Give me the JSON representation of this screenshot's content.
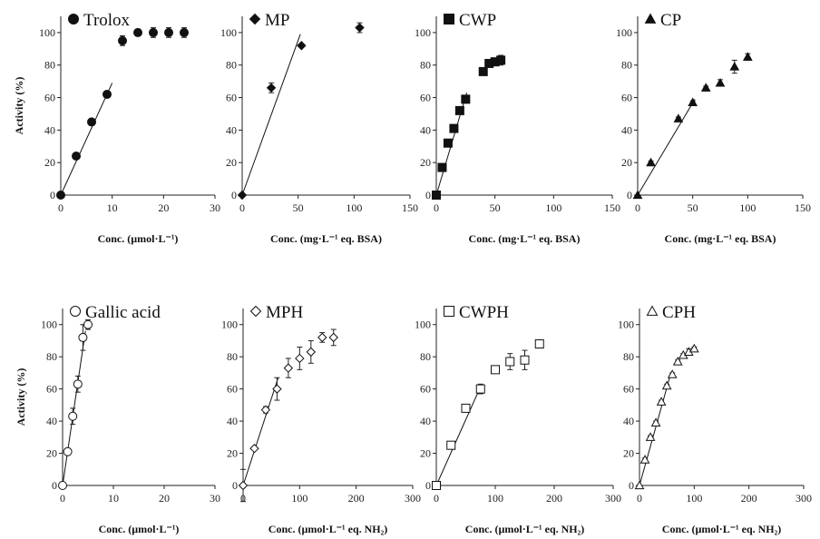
{
  "chart_data": [
    {
      "type": "scatter",
      "legend": "Trolox",
      "marker": "circle-filled",
      "xlim": [
        0,
        30
      ],
      "xticks": [
        0,
        10,
        20,
        30
      ],
      "ylim": [
        0,
        110
      ],
      "yticks": [
        0,
        20,
        40,
        60,
        80,
        100
      ],
      "xlabel": "Conc. (µmol·L⁻¹)",
      "ylabel": "Activity (%)",
      "points": [
        {
          "x": 0,
          "y": 0,
          "err": 0
        },
        {
          "x": 3,
          "y": 24,
          "err": 1
        },
        {
          "x": 6,
          "y": 45,
          "err": 2
        },
        {
          "x": 9,
          "y": 62,
          "err": 2
        },
        {
          "x": 12,
          "y": 95,
          "err": 3
        },
        {
          "x": 15,
          "y": 100,
          "err": 2
        },
        {
          "x": 18,
          "y": 100,
          "err": 3
        },
        {
          "x": 21,
          "y": 100,
          "err": 3
        },
        {
          "x": 24,
          "y": 100,
          "err": 3
        }
      ],
      "fit": [
        [
          0,
          0
        ],
        [
          10,
          69
        ]
      ]
    },
    {
      "type": "scatter",
      "legend": "MP",
      "marker": "diamond-filled",
      "xlim": [
        0,
        150
      ],
      "xticks": [
        0,
        50,
        100,
        150
      ],
      "ylim": [
        0,
        110
      ],
      "yticks": [
        0,
        20,
        40,
        60,
        80,
        100
      ],
      "xlabel": "Conc. (mg·L⁻¹ eq. BSA)",
      "ylabel": "",
      "points": [
        {
          "x": 0,
          "y": 0,
          "err": 0
        },
        {
          "x": 26,
          "y": 66,
          "err": 3
        },
        {
          "x": 53,
          "y": 92,
          "err": 1
        },
        {
          "x": 105,
          "y": 103,
          "err": 3
        }
      ],
      "fit": [
        [
          0,
          0
        ],
        [
          52,
          99
        ]
      ]
    },
    {
      "type": "scatter",
      "legend": "CWP",
      "marker": "square-filled",
      "xlim": [
        0,
        150
      ],
      "xticks": [
        0,
        50,
        100,
        150
      ],
      "ylim": [
        0,
        110
      ],
      "yticks": [
        0,
        20,
        40,
        60,
        80,
        100
      ],
      "xlabel": "Conc. (mg·L⁻¹ eq. BSA)",
      "ylabel": "",
      "points": [
        {
          "x": 0,
          "y": 0,
          "err": 0
        },
        {
          "x": 5,
          "y": 17,
          "err": 1
        },
        {
          "x": 10,
          "y": 32,
          "err": 1
        },
        {
          "x": 15,
          "y": 41,
          "err": 1
        },
        {
          "x": 20,
          "y": 52,
          "err": 1
        },
        {
          "x": 25,
          "y": 59,
          "err": 2
        },
        {
          "x": 40,
          "y": 76,
          "err": 2
        },
        {
          "x": 45,
          "y": 81,
          "err": 2
        },
        {
          "x": 50,
          "y": 82,
          "err": 2
        },
        {
          "x": 55,
          "y": 83,
          "err": 3
        }
      ],
      "fit": [
        [
          0,
          0
        ],
        [
          26,
          63
        ]
      ]
    },
    {
      "type": "scatter",
      "legend": "CP",
      "marker": "triangle-filled",
      "xlim": [
        0,
        150
      ],
      "xticks": [
        0,
        50,
        100,
        150
      ],
      "ylim": [
        0,
        110
      ],
      "yticks": [
        0,
        20,
        40,
        60,
        80,
        100
      ],
      "xlabel": "Conc. (mg·L⁻¹ eq. BSA)",
      "ylabel": "",
      "points": [
        {
          "x": 0,
          "y": 0,
          "err": 0
        },
        {
          "x": 12,
          "y": 20,
          "err": 1
        },
        {
          "x": 37,
          "y": 47,
          "err": 1
        },
        {
          "x": 50,
          "y": 57,
          "err": 1
        },
        {
          "x": 62,
          "y": 66,
          "err": 1
        },
        {
          "x": 75,
          "y": 69,
          "err": 2
        },
        {
          "x": 88,
          "y": 79,
          "err": 4
        },
        {
          "x": 100,
          "y": 85,
          "err": 2
        }
      ],
      "fit": [
        [
          0,
          0
        ],
        [
          52,
          59
        ]
      ]
    },
    {
      "type": "scatter",
      "legend": "Gallic acid",
      "marker": "circle-open",
      "xlim": [
        0,
        30
      ],
      "xticks": [
        0,
        10,
        20,
        30
      ],
      "ylim": [
        0,
        110
      ],
      "yticks": [
        0,
        20,
        40,
        60,
        80,
        100
      ],
      "xlabel": "Conc. (µmol·L⁻¹)",
      "ylabel": "Activity (%)",
      "points": [
        {
          "x": 0,
          "y": 0,
          "err": 0
        },
        {
          "x": 1,
          "y": 21,
          "err": 2
        },
        {
          "x": 2,
          "y": 43,
          "err": 5
        },
        {
          "x": 3,
          "y": 63,
          "err": 5
        },
        {
          "x": 4,
          "y": 92,
          "err": 8
        },
        {
          "x": 5,
          "y": 100,
          "err": 3
        }
      ],
      "fit": [
        [
          0,
          0
        ],
        [
          4.5,
          96
        ]
      ]
    },
    {
      "type": "scatter",
      "legend": "MPH",
      "marker": "diamond-open",
      "xlim": [
        0,
        300
      ],
      "xticks": [
        0,
        100,
        200,
        300
      ],
      "ylim": [
        0,
        110
      ],
      "yticks": [
        0,
        20,
        40,
        60,
        80,
        100
      ],
      "xlabel": "Conc. (µmol·L⁻¹ eq. NH₂)",
      "ylabel": "",
      "points": [
        {
          "x": 0,
          "y": 0,
          "err": 10
        },
        {
          "x": 20,
          "y": 23,
          "err": 1
        },
        {
          "x": 40,
          "y": 47,
          "err": 2
        },
        {
          "x": 60,
          "y": 60,
          "err": 7
        },
        {
          "x": 80,
          "y": 73,
          "err": 6
        },
        {
          "x": 100,
          "y": 79,
          "err": 7
        },
        {
          "x": 120,
          "y": 83,
          "err": 7
        },
        {
          "x": 140,
          "y": 92,
          "err": 3
        },
        {
          "x": 160,
          "y": 92,
          "err": 5
        }
      ],
      "fit": [
        [
          0,
          0
        ],
        [
          62,
          67
        ]
      ]
    },
    {
      "type": "scatter",
      "legend": "CWPH",
      "marker": "square-open",
      "xlim": [
        0,
        300
      ],
      "xticks": [
        0,
        100,
        200,
        300
      ],
      "ylim": [
        0,
        110
      ],
      "yticks": [
        0,
        20,
        40,
        60,
        80,
        100
      ],
      "xlabel": "Conc. (µmol·L⁻¹ eq. NH₂)",
      "ylabel": "",
      "points": [
        {
          "x": 0,
          "y": 0,
          "err": 0
        },
        {
          "x": 25,
          "y": 25,
          "err": 1
        },
        {
          "x": 50,
          "y": 48,
          "err": 2
        },
        {
          "x": 75,
          "y": 60,
          "err": 3
        },
        {
          "x": 100,
          "y": 72,
          "err": 2
        },
        {
          "x": 125,
          "y": 77,
          "err": 5
        },
        {
          "x": 150,
          "y": 78,
          "err": 6
        },
        {
          "x": 175,
          "y": 88,
          "err": 2
        }
      ],
      "fit": [
        [
          0,
          0
        ],
        [
          77,
          63
        ]
      ]
    },
    {
      "type": "scatter",
      "legend": "CPH",
      "marker": "triangle-open",
      "xlim": [
        0,
        300
      ],
      "xticks": [
        0,
        100,
        200,
        300
      ],
      "ylim": [
        0,
        110
      ],
      "yticks": [
        0,
        20,
        40,
        60,
        80,
        100
      ],
      "xlabel": "Conc. (µmol·L⁻¹ eq. NH₂)",
      "ylabel": "",
      "points": [
        {
          "x": 0,
          "y": 0,
          "err": 0
        },
        {
          "x": 10,
          "y": 16,
          "err": 1
        },
        {
          "x": 20,
          "y": 30,
          "err": 1
        },
        {
          "x": 30,
          "y": 39,
          "err": 1
        },
        {
          "x": 40,
          "y": 52,
          "err": 1
        },
        {
          "x": 50,
          "y": 62,
          "err": 1
        },
        {
          "x": 60,
          "y": 69,
          "err": 1
        },
        {
          "x": 70,
          "y": 77,
          "err": 1
        },
        {
          "x": 80,
          "y": 81,
          "err": 1
        },
        {
          "x": 90,
          "y": 83,
          "err": 2
        },
        {
          "x": 100,
          "y": 85,
          "err": 1
        }
      ],
      "fit": [
        [
          0,
          0
        ],
        [
          55,
          67
        ]
      ]
    }
  ]
}
